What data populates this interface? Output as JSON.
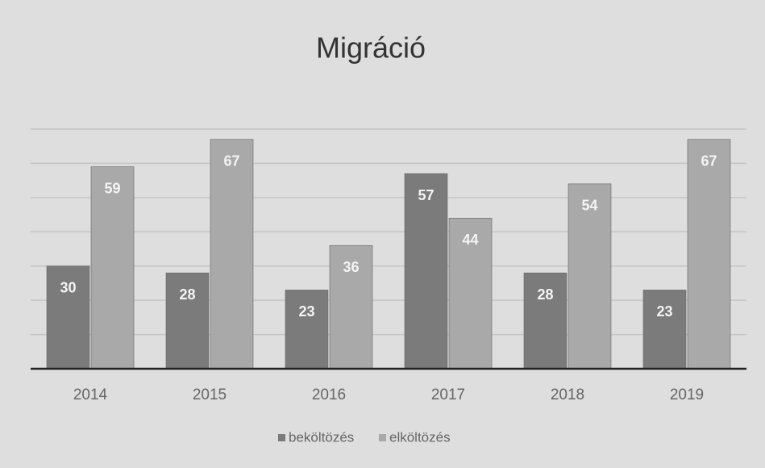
{
  "chart_data": {
    "type": "bar",
    "title": "Migráció",
    "categories": [
      "2014",
      "2015",
      "2016",
      "2017",
      "2018",
      "2019"
    ],
    "series": [
      {
        "name": "beköltözés",
        "color": "#7b7b7b",
        "values": [
          30,
          28,
          23,
          57,
          28,
          23
        ]
      },
      {
        "name": "elköltözés",
        "color": "#a9a9a9",
        "values": [
          59,
          67,
          36,
          44,
          54,
          67
        ]
      }
    ],
    "ylim": [
      0,
      70
    ],
    "yticks": [
      0,
      10,
      20,
      30,
      40,
      50,
      60,
      70
    ],
    "grid": true,
    "legend": "bottom"
  }
}
